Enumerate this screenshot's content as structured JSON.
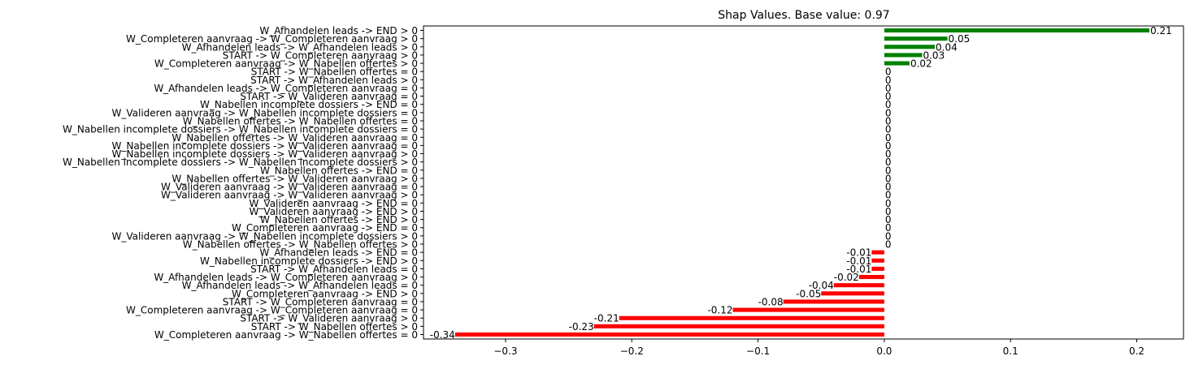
{
  "chart_data": {
    "type": "bar",
    "orientation": "horizontal",
    "title": "Shap Values. Base value: 0.97",
    "xlabel": "",
    "ylabel": "",
    "xlim": [
      -0.365,
      0.237
    ],
    "xticks": [
      -0.3,
      -0.2,
      -0.1,
      0.0,
      0.1,
      0.2
    ],
    "xtick_labels": [
      "−0.3",
      "−0.2",
      "−0.1",
      "0.0",
      "0.1",
      "0.2"
    ],
    "grid": false,
    "colors": {
      "positive": "#008000",
      "negative": "#ff0000",
      "zero": "#008000"
    },
    "categories": [
      "W_Afhandelen leads -> END > 0",
      "W_Completeren aanvraag -> W_Completeren aanvraag > 0",
      "W_Afhandelen leads -> W_Afhandelen leads > 0",
      "START -> W_Completeren aanvraag > 0",
      "W_Completeren aanvraag -> W_Nabellen offertes > 0",
      "START -> W_Nabellen offertes = 0",
      "START -> W_Afhandelen leads > 0",
      "W_Afhandelen leads -> W_Completeren aanvraag = 0",
      "START -> W_Valideren aanvraag = 0",
      "W_Nabellen incomplete dossiers -> END = 0",
      "W_Valideren aanvraag -> W_Nabellen incomplete dossiers = 0",
      "W_Nabellen offertes -> W_Nabellen offertes = 0",
      "W_Nabellen incomplete dossiers -> W_Nabellen incomplete dossiers = 0",
      "W_Nabellen offertes -> W_Valideren aanvraag = 0",
      "W_Nabellen incomplete dossiers -> W_Valideren aanvraag = 0",
      "W_Nabellen incomplete dossiers -> W_Valideren aanvraag > 0",
      "W_Nabellen incomplete dossiers -> W_Nabellen incomplete dossiers > 0",
      "W_Nabellen offertes -> END = 0",
      "W_Nabellen offertes -> W_Valideren aanvraag > 0",
      "W_Valideren aanvraag -> W_Valideren aanvraag = 0",
      "W_Valideren aanvraag -> W_Valideren aanvraag > 0",
      "W_Valideren aanvraag -> END = 0",
      "W_Valideren aanvraag -> END > 0",
      "W_Nabellen offertes -> END > 0",
      "W_Completeren aanvraag -> END = 0",
      "W_Valideren aanvraag -> W_Nabellen incomplete dossiers > 0",
      "W_Nabellen offertes -> W_Nabellen offertes > 0",
      "W_Afhandelen leads -> END = 0",
      "W_Nabellen incomplete dossiers -> END > 0",
      "START -> W_Afhandelen leads = 0",
      "W_Afhandelen leads -> W_Completeren aanvraag > 0",
      "W_Afhandelen leads -> W_Afhandelen leads = 0",
      "W_Completeren aanvraag -> END > 0",
      "START -> W_Completeren aanvraag = 0",
      "W_Completeren aanvraag -> W_Completeren aanvraag = 0",
      "START -> W_Valideren aanvraag > 0",
      "START -> W_Nabellen offertes > 0",
      "W_Completeren aanvraag -> W_Nabellen offertes = 0"
    ],
    "values": [
      0.21,
      0.05,
      0.04,
      0.03,
      0.02,
      0,
      0,
      0,
      0,
      0,
      0,
      0,
      0,
      0,
      0,
      0,
      0,
      0,
      0,
      0,
      0,
      0,
      0,
      0,
      0,
      0,
      0,
      -0.01,
      -0.01,
      -0.01,
      -0.02,
      -0.04,
      -0.05,
      -0.08,
      -0.12,
      -0.21,
      -0.23,
      -0.34
    ],
    "value_labels": [
      "0.21",
      "0.05",
      "0.04",
      "0.03",
      "0.02",
      "0",
      "0",
      "0",
      "0",
      "0",
      "0",
      "0",
      "0",
      "0",
      "0",
      "0",
      "0",
      "0",
      "0",
      "0",
      "0",
      "0",
      "0",
      "0",
      "0",
      "0",
      "0",
      "-0.01",
      "-0.01",
      "-0.01",
      "-0.02",
      "-0.04",
      "-0.05",
      "-0.08",
      "-0.12",
      "-0.21",
      "-0.23",
      "-0.34"
    ]
  }
}
